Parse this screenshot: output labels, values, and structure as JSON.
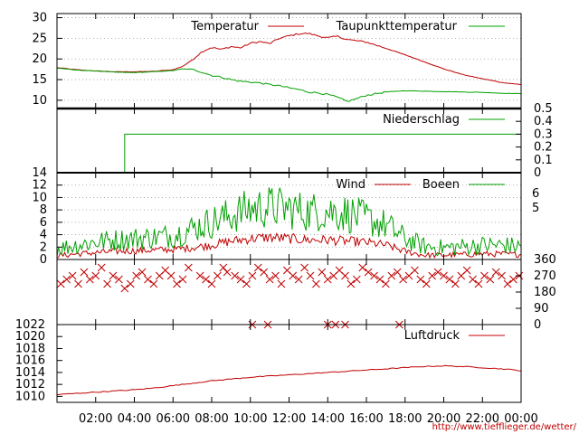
{
  "chart_data": [
    {
      "type": "line",
      "title": "",
      "ylim": [
        8,
        31
      ],
      "yticks": [
        10,
        15,
        20,
        25,
        30
      ],
      "grid": true,
      "legend": "top-right",
      "series": [
        {
          "name": "Temperatur",
          "color": "#c00000",
          "x": [
            0,
            1,
            2,
            3,
            4,
            5,
            6,
            6.5,
            7,
            7.5,
            8,
            8.5,
            9,
            9.5,
            10,
            10.5,
            11,
            11.5,
            12,
            12.5,
            13,
            13.5,
            14,
            14.5,
            15,
            16,
            17,
            18,
            19,
            20,
            21,
            22,
            23,
            24
          ],
          "y": [
            17.9,
            17.4,
            17.1,
            16.9,
            16.9,
            17.0,
            17.4,
            18.2,
            19.8,
            21.8,
            22.8,
            22.3,
            23.0,
            22.7,
            23.8,
            24.2,
            23.7,
            25.0,
            25.6,
            26.1,
            26.2,
            25.6,
            25.1,
            25.5,
            24.7,
            24.1,
            22.6,
            21.0,
            19.3,
            17.6,
            16.2,
            15.2,
            14.3,
            13.8
          ]
        },
        {
          "name": "Taupunkttemperatur",
          "color": "#00a000",
          "x": [
            0,
            1,
            2,
            3,
            4,
            5,
            6,
            6.5,
            7,
            7.5,
            8,
            8.5,
            9,
            9.5,
            10,
            10.5,
            11,
            11.5,
            12,
            12.5,
            13,
            13.5,
            14,
            14.5,
            15,
            15.5,
            16,
            17,
            18,
            19,
            20,
            21,
            22,
            23,
            24
          ],
          "y": [
            17.8,
            17.3,
            17.1,
            16.8,
            16.7,
            16.9,
            17.2,
            17.6,
            17.5,
            16.8,
            16.0,
            15.6,
            15.0,
            14.6,
            14.4,
            14.2,
            13.8,
            13.5,
            13.0,
            12.6,
            12.0,
            11.8,
            11.4,
            10.7,
            9.7,
            10.4,
            11.2,
            12.0,
            12.3,
            12.2,
            12.1,
            12.0,
            11.9,
            11.7,
            11.6
          ]
        }
      ]
    },
    {
      "type": "line",
      "ylim": [
        0,
        0.5
      ],
      "yticks": [
        0,
        0.1,
        0.2,
        0.3,
        0.4,
        0.5
      ],
      "legend": "top-right",
      "series": [
        {
          "name": "Niederschlag",
          "color": "#00a000",
          "x": [
            0,
            3.5,
            3.5,
            24
          ],
          "y": [
            0,
            0,
            0.3,
            0.3
          ]
        }
      ]
    },
    {
      "type": "line",
      "ylim": [
        0,
        14
      ],
      "yticks": [
        0,
        2,
        4,
        6,
        8,
        10,
        12,
        14
      ],
      "right_labels": [
        "6",
        "5"
      ],
      "grid": true,
      "legend": "top-right",
      "series": [
        {
          "name": "Wind",
          "color": "#c00000",
          "x": [
            0,
            1,
            2,
            3,
            4,
            5,
            6,
            7,
            8,
            9,
            10,
            11,
            12,
            13,
            14,
            15,
            16,
            17,
            18,
            19,
            20,
            21,
            22,
            23,
            24
          ],
          "y": [
            0.5,
            0.8,
            1.0,
            1.2,
            1.3,
            1.4,
            1.5,
            1.8,
            2.2,
            2.8,
            3.2,
            3.4,
            3.2,
            3.0,
            3.0,
            2.8,
            2.6,
            2.2,
            1.2,
            0.6,
            0.6,
            0.7,
            0.8,
            0.8,
            0.7
          ]
        },
        {
          "name": "Boeen",
          "color": "#00a000",
          "x": [
            0,
            1,
            2,
            3,
            4,
            5,
            6,
            7,
            8,
            9,
            10,
            11,
            12,
            13,
            14,
            15,
            16,
            17,
            18,
            19,
            20,
            21,
            22,
            23,
            24
          ],
          "y": [
            1.5,
            2.0,
            2.5,
            2.8,
            3.0,
            3.2,
            3.5,
            4.5,
            5.5,
            6.5,
            7.5,
            7.8,
            7.5,
            7.0,
            7.2,
            6.8,
            6.0,
            5.0,
            3.0,
            1.8,
            1.6,
            1.8,
            2.0,
            2.0,
            1.8
          ]
        }
      ]
    },
    {
      "type": "scatter",
      "ylim": [
        0,
        360
      ],
      "yticks": [
        0,
        90,
        180,
        270,
        360
      ],
      "series": [
        {
          "name": "",
          "color": "#c00000",
          "marker": "x",
          "x": [
            0.2,
            0.5,
            0.8,
            1.1,
            1.4,
            1.7,
            2.0,
            2.3,
            2.6,
            2.9,
            3.2,
            3.5,
            3.8,
            4.1,
            4.4,
            4.7,
            5.0,
            5.3,
            5.6,
            5.9,
            6.2,
            6.5,
            6.8,
            7.4,
            7.7,
            8.0,
            8.3,
            8.6,
            8.8,
            9.2,
            9.5,
            9.8,
            10.1,
            10.4,
            10.7,
            11.0,
            11.3,
            11.6,
            11.9,
            12.2,
            12.5,
            12.8,
            13.1,
            13.4,
            13.7,
            14.0,
            14.3,
            14.6,
            14.9,
            15.2,
            15.5,
            15.8,
            16.1,
            16.4,
            16.7,
            17.0,
            17.3,
            17.6,
            17.9,
            18.2,
            18.5,
            18.8,
            19.1,
            19.4,
            19.7,
            20.0,
            20.3,
            20.6,
            20.9,
            21.2,
            21.5,
            21.8,
            22.1,
            22.4,
            22.7,
            23.0,
            23.3,
            23.6,
            23.9,
            10.1,
            10.9,
            14.0,
            14.4,
            14.9,
            17.7
          ],
          "y": [
            225,
            250,
            270,
            225,
            290,
            250,
            270,
            315,
            225,
            270,
            250,
            200,
            225,
            270,
            290,
            250,
            225,
            270,
            300,
            270,
            225,
            250,
            315,
            270,
            250,
            225,
            270,
            315,
            290,
            270,
            250,
            225,
            270,
            315,
            290,
            250,
            270,
            225,
            300,
            270,
            250,
            315,
            270,
            225,
            290,
            250,
            270,
            300,
            270,
            225,
            250,
            315,
            290,
            270,
            250,
            225,
            270,
            290,
            250,
            270,
            300,
            250,
            225,
            270,
            290,
            270,
            250,
            225,
            270,
            300,
            250,
            225,
            270,
            250,
            290,
            270,
            225,
            250,
            270,
            0,
            0,
            0,
            0,
            0,
            0
          ]
        }
      ]
    },
    {
      "type": "line",
      "ylim": [
        1009,
        1022
      ],
      "yticks": [
        1010,
        1012,
        1014,
        1016,
        1018,
        1020,
        1022
      ],
      "xticks": [
        "02:00",
        "04:00",
        "06:00",
        "08:00",
        "10:00",
        "12:00",
        "14:00",
        "16:00",
        "18:00",
        "20:00",
        "22:00",
        "00:00"
      ],
      "legend": "top-right",
      "series": [
        {
          "name": "Luftdruck",
          "color": "#c00000",
          "x": [
            0,
            1,
            2,
            3,
            4,
            5,
            6,
            7,
            8,
            9,
            10,
            11,
            12,
            13,
            14,
            15,
            16,
            17,
            18,
            19,
            20,
            21,
            22,
            23,
            24
          ],
          "y": [
            1010.3,
            1010.5,
            1010.7,
            1010.9,
            1011.1,
            1011.4,
            1011.8,
            1012.2,
            1012.6,
            1012.9,
            1013.2,
            1013.4,
            1013.6,
            1013.8,
            1014.0,
            1014.2,
            1014.4,
            1014.6,
            1014.8,
            1015.0,
            1015.1,
            1015.0,
            1014.8,
            1014.6,
            1014.3
          ]
        }
      ]
    }
  ],
  "footer": {
    "url": "http://www.tiefflieger.de/wetter/"
  }
}
